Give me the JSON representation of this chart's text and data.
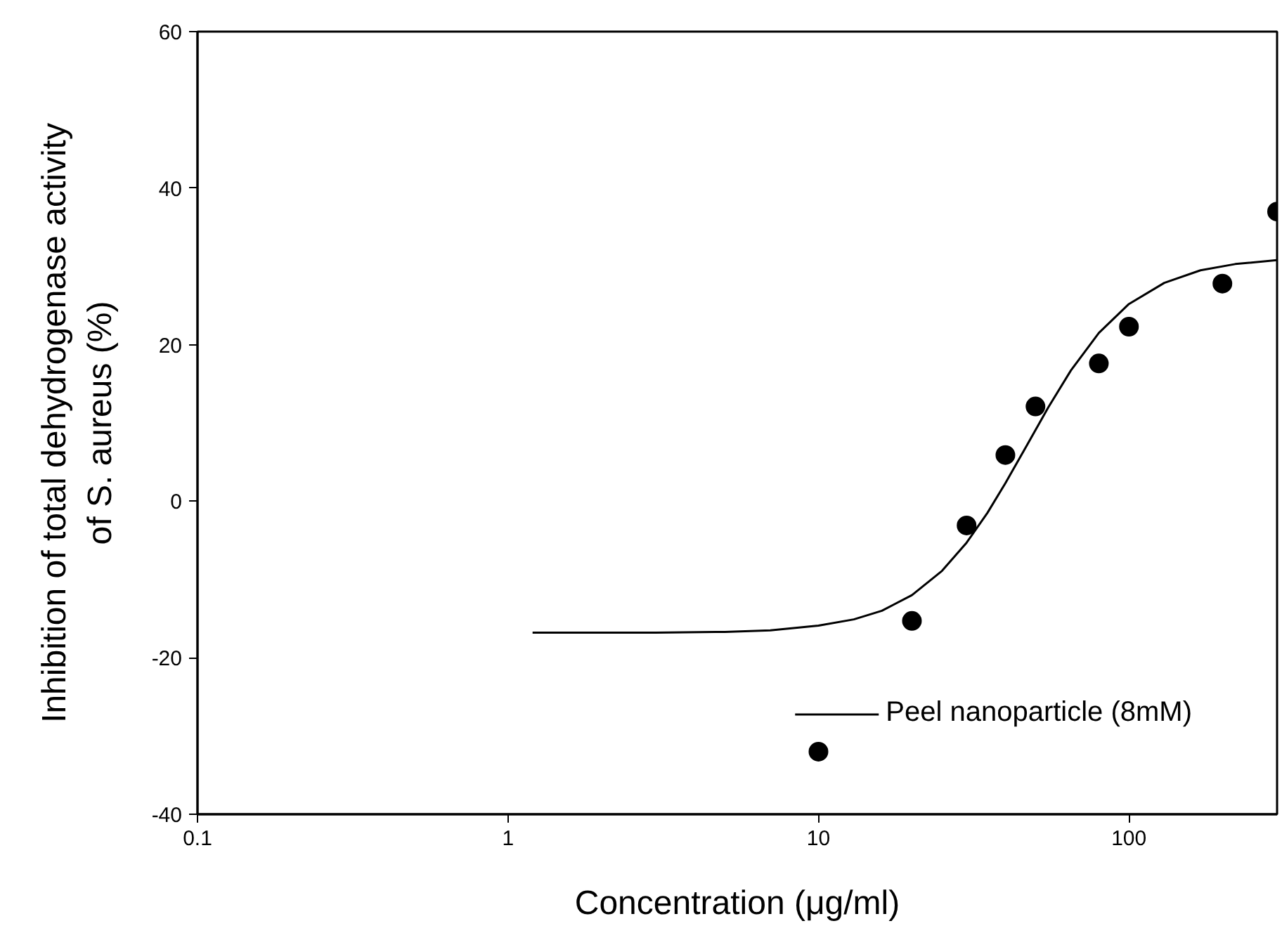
{
  "chart_data": {
    "type": "scatter",
    "xlabel": "Concentration (μg/ml)",
    "ylabel": "Inhibition of total dehydrogenase activity\nof S. aureus (%)",
    "log": "x",
    "xlim": [
      0.1,
      300
    ],
    "xticks": [
      0.1,
      1,
      10,
      100
    ],
    "ylim": [
      -40,
      60
    ],
    "yticks": [
      -40,
      -20,
      0,
      20,
      40,
      60
    ],
    "grid": false,
    "legend": "bottom right",
    "series": [
      {
        "color": "#000000",
        "marker": "circle",
        "x": [
          10,
          20,
          30,
          40,
          50,
          80,
          100,
          200,
          300
        ],
        "values": [
          -32,
          -15.3,
          -3.1,
          5.9,
          12.1,
          17.6,
          22.3,
          27.8,
          37
        ]
      },
      {
        "type": "line",
        "name": "Peel nanoparticle (8mM)",
        "color": "#000000",
        "marker": "none",
        "line_style": "solid",
        "x": [
          1.2,
          2,
          3,
          5,
          7,
          10,
          13,
          16,
          20,
          25,
          30,
          35,
          40,
          47,
          55,
          65,
          80,
          100,
          130,
          170,
          220,
          300
        ],
        "values": [
          -16.8,
          -16.8,
          -16.8,
          -16.7,
          -16.5,
          -15.9,
          -15.1,
          -14.0,
          -12.0,
          -8.9,
          -5.3,
          -1.5,
          2.3,
          7.2,
          12.0,
          16.7,
          21.5,
          25.2,
          27.9,
          29.5,
          30.3,
          30.8
        ]
      }
    ]
  }
}
